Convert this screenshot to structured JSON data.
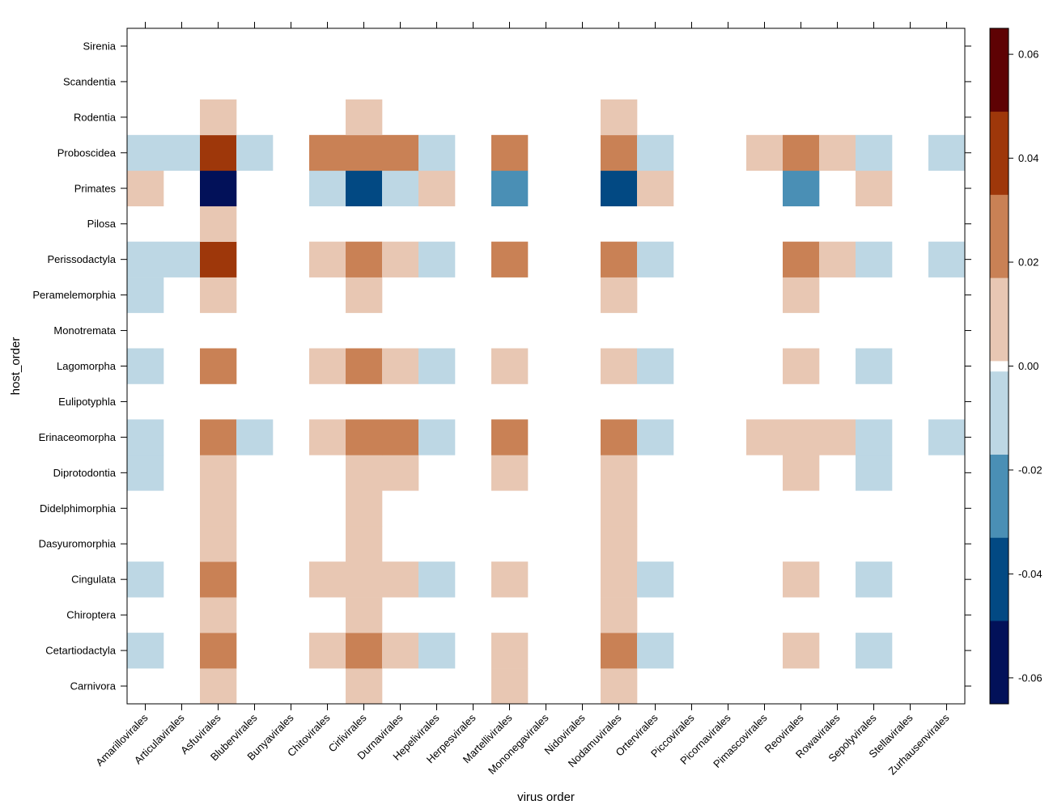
{
  "chart_data": {
    "type": "heatmap",
    "title": "",
    "xlabel": "virus order",
    "ylabel": "host_order",
    "x_categories": [
      "Amarillovirales",
      "Articulavirales",
      "Asfuvirales",
      "Blubervirales",
      "Bunyavirales",
      "Chitovirales",
      "Cirlivirales",
      "Durnavirales",
      "Hepelivirales",
      "Herpesvirales",
      "Martellivirales",
      "Mononegavirales",
      "Nidovirales",
      "Nodamuvirales",
      "Ortervirales",
      "Piccovirales",
      "Picornavirales",
      "Pimascovirales",
      "Reovirales",
      "Rowavirales",
      "Sepolyvirales",
      "Stellavirales",
      "Zurhausenvirales"
    ],
    "y_categories": [
      "Carnivora",
      "Cetartiodactyla",
      "Chiroptera",
      "Cingulata",
      "Dasyuromorphia",
      "Didelphimorphia",
      "Diprotodontia",
      "Erinaceomorpha",
      "Eulipotyphla",
      "Lagomorpha",
      "Monotremata",
      "Peramelemorphia",
      "Perissodactyla",
      "Pilosa",
      "Primates",
      "Proboscidea",
      "Rodentia",
      "Scandentia",
      "Sirenia"
    ],
    "cells": [
      {
        "y": "Carnivora",
        "x": "Asfuvirales",
        "value": 0.008
      },
      {
        "y": "Carnivora",
        "x": "Cirlivirales",
        "value": 0.008
      },
      {
        "y": "Carnivora",
        "x": "Martellivirales",
        "value": 0.008
      },
      {
        "y": "Carnivora",
        "x": "Nodamuvirales",
        "value": 0.008
      },
      {
        "y": "Cetartiodactyla",
        "x": "Amarillovirales",
        "value": -0.008
      },
      {
        "y": "Cetartiodactyla",
        "x": "Asfuvirales",
        "value": 0.024
      },
      {
        "y": "Cetartiodactyla",
        "x": "Chitovirales",
        "value": 0.008
      },
      {
        "y": "Cetartiodactyla",
        "x": "Cirlivirales",
        "value": 0.024
      },
      {
        "y": "Cetartiodactyla",
        "x": "Durnavirales",
        "value": 0.008
      },
      {
        "y": "Cetartiodactyla",
        "x": "Hepelivirales",
        "value": -0.008
      },
      {
        "y": "Cetartiodactyla",
        "x": "Martellivirales",
        "value": 0.008
      },
      {
        "y": "Cetartiodactyla",
        "x": "Nodamuvirales",
        "value": 0.024
      },
      {
        "y": "Cetartiodactyla",
        "x": "Ortervirales",
        "value": -0.008
      },
      {
        "y": "Cetartiodactyla",
        "x": "Reovirales",
        "value": 0.008
      },
      {
        "y": "Cetartiodactyla",
        "x": "Sepolyvirales",
        "value": -0.008
      },
      {
        "y": "Chiroptera",
        "x": "Asfuvirales",
        "value": 0.008
      },
      {
        "y": "Chiroptera",
        "x": "Cirlivirales",
        "value": 0.008
      },
      {
        "y": "Chiroptera",
        "x": "Nodamuvirales",
        "value": 0.008
      },
      {
        "y": "Cingulata",
        "x": "Amarillovirales",
        "value": -0.008
      },
      {
        "y": "Cingulata",
        "x": "Asfuvirales",
        "value": 0.024
      },
      {
        "y": "Cingulata",
        "x": "Chitovirales",
        "value": 0.008
      },
      {
        "y": "Cingulata",
        "x": "Cirlivirales",
        "value": 0.008
      },
      {
        "y": "Cingulata",
        "x": "Durnavirales",
        "value": 0.008
      },
      {
        "y": "Cingulata",
        "x": "Hepelivirales",
        "value": -0.008
      },
      {
        "y": "Cingulata",
        "x": "Martellivirales",
        "value": 0.008
      },
      {
        "y": "Cingulata",
        "x": "Nodamuvirales",
        "value": 0.008
      },
      {
        "y": "Cingulata",
        "x": "Ortervirales",
        "value": -0.008
      },
      {
        "y": "Cingulata",
        "x": "Reovirales",
        "value": 0.008
      },
      {
        "y": "Cingulata",
        "x": "Sepolyvirales",
        "value": -0.008
      },
      {
        "y": "Dasyuromorphia",
        "x": "Asfuvirales",
        "value": 0.008
      },
      {
        "y": "Dasyuromorphia",
        "x": "Cirlivirales",
        "value": 0.008
      },
      {
        "y": "Dasyuromorphia",
        "x": "Nodamuvirales",
        "value": 0.008
      },
      {
        "y": "Didelphimorphia",
        "x": "Asfuvirales",
        "value": 0.008
      },
      {
        "y": "Didelphimorphia",
        "x": "Cirlivirales",
        "value": 0.008
      },
      {
        "y": "Didelphimorphia",
        "x": "Nodamuvirales",
        "value": 0.008
      },
      {
        "y": "Diprotodontia",
        "x": "Amarillovirales",
        "value": -0.008
      },
      {
        "y": "Diprotodontia",
        "x": "Asfuvirales",
        "value": 0.008
      },
      {
        "y": "Diprotodontia",
        "x": "Cirlivirales",
        "value": 0.008
      },
      {
        "y": "Diprotodontia",
        "x": "Durnavirales",
        "value": 0.008
      },
      {
        "y": "Diprotodontia",
        "x": "Martellivirales",
        "value": 0.008
      },
      {
        "y": "Diprotodontia",
        "x": "Nodamuvirales",
        "value": 0.008
      },
      {
        "y": "Diprotodontia",
        "x": "Reovirales",
        "value": 0.008
      },
      {
        "y": "Diprotodontia",
        "x": "Sepolyvirales",
        "value": -0.008
      },
      {
        "y": "Erinaceomorpha",
        "x": "Amarillovirales",
        "value": -0.008
      },
      {
        "y": "Erinaceomorpha",
        "x": "Asfuvirales",
        "value": 0.024
      },
      {
        "y": "Erinaceomorpha",
        "x": "Blubervirales",
        "value": -0.008
      },
      {
        "y": "Erinaceomorpha",
        "x": "Chitovirales",
        "value": 0.008
      },
      {
        "y": "Erinaceomorpha",
        "x": "Cirlivirales",
        "value": 0.024
      },
      {
        "y": "Erinaceomorpha",
        "x": "Durnavirales",
        "value": 0.024
      },
      {
        "y": "Erinaceomorpha",
        "x": "Hepelivirales",
        "value": -0.008
      },
      {
        "y": "Erinaceomorpha",
        "x": "Martellivirales",
        "value": 0.024
      },
      {
        "y": "Erinaceomorpha",
        "x": "Nodamuvirales",
        "value": 0.024
      },
      {
        "y": "Erinaceomorpha",
        "x": "Ortervirales",
        "value": -0.008
      },
      {
        "y": "Erinaceomorpha",
        "x": "Pimascovirales",
        "value": 0.008
      },
      {
        "y": "Erinaceomorpha",
        "x": "Reovirales",
        "value": 0.008
      },
      {
        "y": "Erinaceomorpha",
        "x": "Rowavirales",
        "value": 0.008
      },
      {
        "y": "Erinaceomorpha",
        "x": "Sepolyvirales",
        "value": -0.008
      },
      {
        "y": "Erinaceomorpha",
        "x": "Zurhausenvirales",
        "value": -0.008
      },
      {
        "y": "Lagomorpha",
        "x": "Amarillovirales",
        "value": -0.008
      },
      {
        "y": "Lagomorpha",
        "x": "Asfuvirales",
        "value": 0.024
      },
      {
        "y": "Lagomorpha",
        "x": "Chitovirales",
        "value": 0.008
      },
      {
        "y": "Lagomorpha",
        "x": "Cirlivirales",
        "value": 0.024
      },
      {
        "y": "Lagomorpha",
        "x": "Durnavirales",
        "value": 0.008
      },
      {
        "y": "Lagomorpha",
        "x": "Hepelivirales",
        "value": -0.008
      },
      {
        "y": "Lagomorpha",
        "x": "Martellivirales",
        "value": 0.008
      },
      {
        "y": "Lagomorpha",
        "x": "Nodamuvirales",
        "value": 0.008
      },
      {
        "y": "Lagomorpha",
        "x": "Ortervirales",
        "value": -0.008
      },
      {
        "y": "Lagomorpha",
        "x": "Reovirales",
        "value": 0.008
      },
      {
        "y": "Lagomorpha",
        "x": "Sepolyvirales",
        "value": -0.008
      },
      {
        "y": "Peramelemorphia",
        "x": "Amarillovirales",
        "value": -0.008
      },
      {
        "y": "Peramelemorphia",
        "x": "Asfuvirales",
        "value": 0.008
      },
      {
        "y": "Peramelemorphia",
        "x": "Cirlivirales",
        "value": 0.008
      },
      {
        "y": "Peramelemorphia",
        "x": "Nodamuvirales",
        "value": 0.008
      },
      {
        "y": "Peramelemorphia",
        "x": "Reovirales",
        "value": 0.008
      },
      {
        "y": "Perissodactyla",
        "x": "Amarillovirales",
        "value": -0.008
      },
      {
        "y": "Perissodactyla",
        "x": "Articulavirales",
        "value": -0.008
      },
      {
        "y": "Perissodactyla",
        "x": "Asfuvirales",
        "value": 0.04
      },
      {
        "y": "Perissodactyla",
        "x": "Chitovirales",
        "value": 0.008
      },
      {
        "y": "Perissodactyla",
        "x": "Cirlivirales",
        "value": 0.024
      },
      {
        "y": "Perissodactyla",
        "x": "Durnavirales",
        "value": 0.008
      },
      {
        "y": "Perissodactyla",
        "x": "Hepelivirales",
        "value": -0.008
      },
      {
        "y": "Perissodactyla",
        "x": "Martellivirales",
        "value": 0.024
      },
      {
        "y": "Perissodactyla",
        "x": "Nodamuvirales",
        "value": 0.024
      },
      {
        "y": "Perissodactyla",
        "x": "Ortervirales",
        "value": -0.008
      },
      {
        "y": "Perissodactyla",
        "x": "Reovirales",
        "value": 0.024
      },
      {
        "y": "Perissodactyla",
        "x": "Rowavirales",
        "value": 0.008
      },
      {
        "y": "Perissodactyla",
        "x": "Sepolyvirales",
        "value": -0.008
      },
      {
        "y": "Perissodactyla",
        "x": "Zurhausenvirales",
        "value": -0.008
      },
      {
        "y": "Pilosa",
        "x": "Asfuvirales",
        "value": 0.008
      },
      {
        "y": "Primates",
        "x": "Amarillovirales",
        "value": 0.008
      },
      {
        "y": "Primates",
        "x": "Asfuvirales",
        "value": -0.056
      },
      {
        "y": "Primates",
        "x": "Chitovirales",
        "value": -0.008
      },
      {
        "y": "Primates",
        "x": "Cirlivirales",
        "value": -0.04
      },
      {
        "y": "Primates",
        "x": "Durnavirales",
        "value": -0.008
      },
      {
        "y": "Primates",
        "x": "Hepelivirales",
        "value": 0.008
      },
      {
        "y": "Primates",
        "x": "Martellivirales",
        "value": -0.024
      },
      {
        "y": "Primates",
        "x": "Nodamuvirales",
        "value": -0.04
      },
      {
        "y": "Primates",
        "x": "Ortervirales",
        "value": 0.008
      },
      {
        "y": "Primates",
        "x": "Reovirales",
        "value": -0.024
      },
      {
        "y": "Primates",
        "x": "Sepolyvirales",
        "value": 0.008
      },
      {
        "y": "Proboscidea",
        "x": "Amarillovirales",
        "value": -0.008
      },
      {
        "y": "Proboscidea",
        "x": "Articulavirales",
        "value": -0.008
      },
      {
        "y": "Proboscidea",
        "x": "Asfuvirales",
        "value": 0.04
      },
      {
        "y": "Proboscidea",
        "x": "Blubervirales",
        "value": -0.008
      },
      {
        "y": "Proboscidea",
        "x": "Chitovirales",
        "value": 0.024
      },
      {
        "y": "Proboscidea",
        "x": "Cirlivirales",
        "value": 0.024
      },
      {
        "y": "Proboscidea",
        "x": "Durnavirales",
        "value": 0.024
      },
      {
        "y": "Proboscidea",
        "x": "Hepelivirales",
        "value": -0.008
      },
      {
        "y": "Proboscidea",
        "x": "Martellivirales",
        "value": 0.024
      },
      {
        "y": "Proboscidea",
        "x": "Nodamuvirales",
        "value": 0.024
      },
      {
        "y": "Proboscidea",
        "x": "Ortervirales",
        "value": -0.008
      },
      {
        "y": "Proboscidea",
        "x": "Pimascovirales",
        "value": 0.008
      },
      {
        "y": "Proboscidea",
        "x": "Reovirales",
        "value": 0.024
      },
      {
        "y": "Proboscidea",
        "x": "Rowavirales",
        "value": 0.008
      },
      {
        "y": "Proboscidea",
        "x": "Sepolyvirales",
        "value": -0.008
      },
      {
        "y": "Proboscidea",
        "x": "Zurhausenvirales",
        "value": -0.008
      },
      {
        "y": "Rodentia",
        "x": "Asfuvirales",
        "value": 0.008
      },
      {
        "y": "Rodentia",
        "x": "Cirlivirales",
        "value": 0.008
      },
      {
        "y": "Rodentia",
        "x": "Nodamuvirales",
        "value": 0.008
      }
    ],
    "colorbar": {
      "range": [
        -0.065,
        0.065
      ],
      "ticks": [
        -0.06,
        -0.04,
        -0.02,
        0.0,
        0.02,
        0.04,
        0.06
      ],
      "tick_labels": [
        "-0.06",
        "-0.04",
        "-0.02",
        "0.00",
        "0.02",
        "0.04",
        "0.06"
      ],
      "bins": [
        {
          "from": -0.065,
          "to": -0.049,
          "color": "#021159"
        },
        {
          "from": -0.049,
          "to": -0.033,
          "color": "#024983"
        },
        {
          "from": -0.033,
          "to": -0.017,
          "color": "#4A8FB5"
        },
        {
          "from": -0.017,
          "to": -0.001,
          "color": "#BDD7E4"
        },
        {
          "from": -0.001,
          "to": 0.001,
          "color": "#FFFFFF"
        },
        {
          "from": 0.001,
          "to": 0.017,
          "color": "#E8C7B3"
        },
        {
          "from": 0.017,
          "to": 0.033,
          "color": "#C98155"
        },
        {
          "from": 0.033,
          "to": 0.049,
          "color": "#9E370A"
        },
        {
          "from": 0.049,
          "to": 0.065,
          "color": "#5E0204"
        }
      ]
    },
    "grid": false,
    "legend": "colorbar-right"
  }
}
